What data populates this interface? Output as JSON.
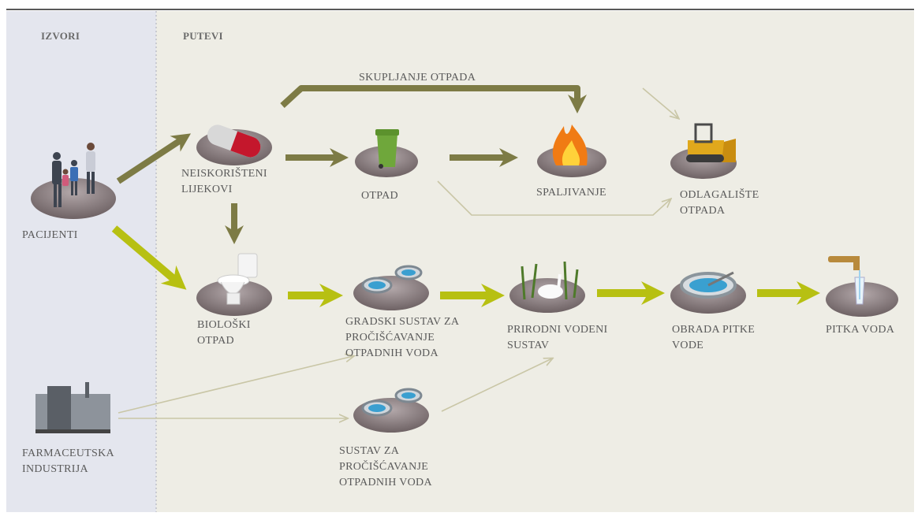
{
  "sections": {
    "sources": "IZVORI",
    "pathways": "PUTEVI"
  },
  "edge_label": "SKUPLJANJE OTPADA",
  "nodes": [
    {
      "label": [
        "PACIJENTI"
      ]
    },
    {
      "label": [
        "NEISKORIŠTENI",
        "LIJEKOVI"
      ]
    },
    {
      "label": [
        "OTPAD"
      ]
    },
    {
      "label": [
        "SPALJIVANJE"
      ]
    },
    {
      "label": [
        "ODLAGALIŠTE",
        "OTPADA"
      ]
    },
    {
      "label": [
        "BIOLOŠKI",
        "OTPAD"
      ]
    },
    {
      "label": [
        "GRADSKI SUSTAV ZA",
        "PROČIŠĆAVANJE",
        "OTPADNIH VODA"
      ]
    },
    {
      "label": [
        "PRIRODNI VODENI",
        "SUSTAV"
      ]
    },
    {
      "label": [
        "OBRADA PITKE",
        "VODE"
      ]
    },
    {
      "label": [
        "PITKA VODA"
      ]
    },
    {
      "label": [
        "FARMACEUTSKA",
        "INDUSTRIJA"
      ]
    },
    {
      "label": [
        "SUSTAV ZA",
        "PROČIŠĆAVANJE",
        "OTPADNIH VODA"
      ]
    }
  ]
}
